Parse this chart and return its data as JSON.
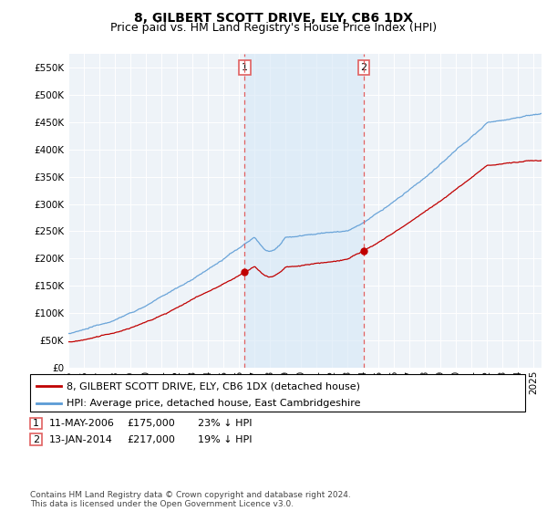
{
  "title": "8, GILBERT SCOTT DRIVE, ELY, CB6 1DX",
  "subtitle": "Price paid vs. HM Land Registry's House Price Index (HPI)",
  "ylim": [
    0,
    575000
  ],
  "yticks": [
    0,
    50000,
    100000,
    150000,
    200000,
    250000,
    300000,
    350000,
    400000,
    450000,
    500000,
    550000
  ],
  "hpi_color": "#5b9bd5",
  "hpi_fill_color": "#d6e8f7",
  "price_color": "#c00000",
  "marker_color": "#c00000",
  "vline_color": "#e06060",
  "background_color": "#ffffff",
  "plot_bg_color": "#eef3f8",
  "transaction1_x": 2006.37,
  "transaction2_x": 2014.04,
  "legend_line1": "8, GILBERT SCOTT DRIVE, ELY, CB6 1DX (detached house)",
  "legend_line2": "HPI: Average price, detached house, East Cambridgeshire",
  "table_row1": [
    "1",
    "11-MAY-2006",
    "£175,000",
    "23% ↓ HPI"
  ],
  "table_row2": [
    "2",
    "13-JAN-2014",
    "£217,000",
    "19% ↓ HPI"
  ],
  "footnote": "Contains HM Land Registry data © Crown copyright and database right 2024.\nThis data is licensed under the Open Government Licence v3.0.",
  "title_fontsize": 10,
  "subtitle_fontsize": 9,
  "tick_fontsize": 7.5,
  "legend_fontsize": 8,
  "table_fontsize": 8,
  "footnote_fontsize": 6.5,
  "xmin": 1995,
  "xmax": 2025.5
}
